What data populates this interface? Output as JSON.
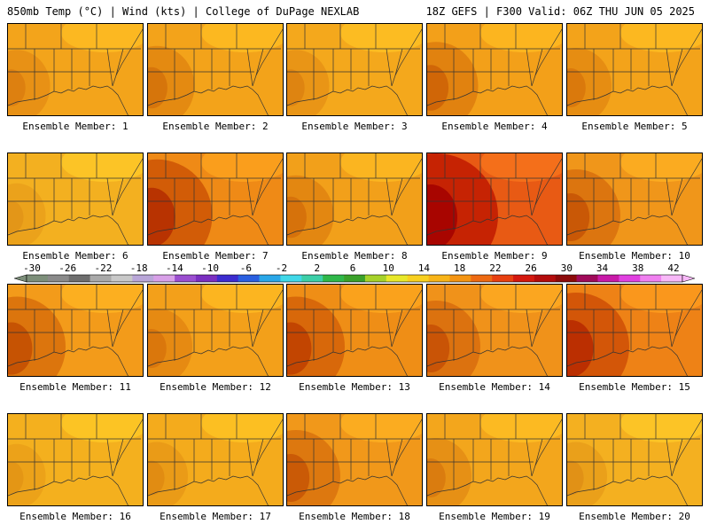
{
  "header": {
    "left": "850mb Temp (°C) | Wind (kts) | College of DuPage NEXLAB",
    "right": "18Z GEFS | F300 Valid: 06Z THU JUN 05 2025"
  },
  "colorbar": {
    "tick_labels": [
      "-30",
      "-26",
      "-22",
      "-18",
      "-14",
      "-10",
      "-6",
      "-2",
      "2",
      "6",
      "10",
      "14",
      "18",
      "22",
      "26",
      "30",
      "34",
      "38",
      "42"
    ],
    "colors": [
      "#7d8f7a",
      "#8a8a8a",
      "#6e6e6e",
      "#a9a9a9",
      "#c8c8c8",
      "#b9a6d8",
      "#d8a0e8",
      "#9b4fd0",
      "#7a2fc0",
      "#3c2ccf",
      "#2a5fe0",
      "#2aa7e8",
      "#40d8e8",
      "#3ccfa8",
      "#2fb84a",
      "#3aa12a",
      "#a6d22a",
      "#e8e82a",
      "#f8d020",
      "#f8b418",
      "#f49412",
      "#ee6a12",
      "#e84010",
      "#d4180e",
      "#b40c0c",
      "#8c0a0a",
      "#a00a5a",
      "#c81aa8",
      "#e040e0",
      "#f080f0",
      "#f8b8f8"
    ]
  },
  "panels": [
    {
      "label": "Ensemble Member: 1",
      "base": "#f3a41b",
      "warm": 0.35
    },
    {
      "label": "Ensemble Member: 2",
      "base": "#f3a31a",
      "warm": 0.45
    },
    {
      "label": "Ensemble Member: 3",
      "base": "#f4a81c",
      "warm": 0.35
    },
    {
      "label": "Ensemble Member: 4",
      "base": "#f3a019",
      "warm": 0.55
    },
    {
      "label": "Ensemble Member: 5",
      "base": "#f3a31a",
      "warm": 0.4
    },
    {
      "label": "Ensemble Member: 6",
      "base": "#f3b020",
      "warm": 0.25
    },
    {
      "label": "Ensemble Member: 7",
      "base": "#ef8a16",
      "warm": 0.85
    },
    {
      "label": "Ensemble Member: 8",
      "base": "#f2a01a",
      "warm": 0.45
    },
    {
      "label": "Ensemble Member: 9",
      "base": "#e85a14",
      "warm": 1.0
    },
    {
      "label": "Ensemble Member: 10",
      "base": "#f0961a",
      "warm": 0.6
    },
    {
      "label": "Ensemble Member: 11",
      "base": "#f39b1a",
      "warm": 0.7
    },
    {
      "label": "Ensemble Member: 12",
      "base": "#f3a01a",
      "warm": 0.4
    },
    {
      "label": "Ensemble Member: 13",
      "base": "#ef8e16",
      "warm": 0.7
    },
    {
      "label": "Ensemble Member: 14",
      "base": "#f0921a",
      "warm": 0.6
    },
    {
      "label": "Ensemble Member: 15",
      "base": "#ee8216",
      "warm": 0.8
    },
    {
      "label": "Ensemble Member: 16",
      "base": "#f4b01e",
      "warm": 0.25
    },
    {
      "label": "Ensemble Member: 17",
      "base": "#f4ab1c",
      "warm": 0.3
    },
    {
      "label": "Ensemble Member: 18",
      "base": "#f1981a",
      "warm": 0.6
    },
    {
      "label": "Ensemble Member: 19",
      "base": "#f3a61c",
      "warm": 0.4
    },
    {
      "label": "Ensemble Member: 20",
      "base": "#f4b020",
      "warm": 0.3
    }
  ]
}
